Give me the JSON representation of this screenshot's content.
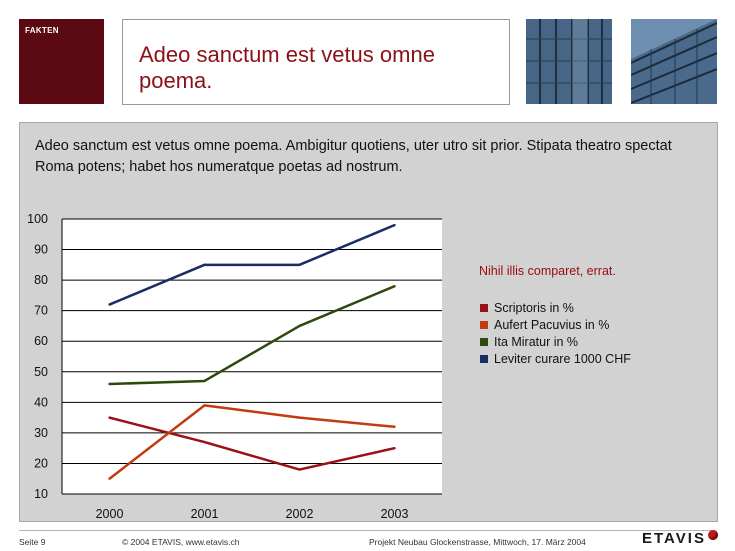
{
  "header": {
    "section_label": "FAKTEN",
    "title": "Adeo sanctum est vetus omne poema."
  },
  "content": {
    "intro": "Adeo sanctum est vetus omne poema. Ambigitur quotiens, uter utro sit prior. Stipata theatro spectat Roma potens; habet hos numeratque poetas ad nostrum."
  },
  "colors": {
    "brand_dark_red": "#5a0a10",
    "title_red": "#8c1018",
    "panel_gray": "#d2d2d2"
  },
  "chart_data": {
    "type": "line",
    "x": [
      "2000",
      "2001",
      "2002",
      "2003"
    ],
    "ylim": [
      10,
      100
    ],
    "yticks": [
      10,
      20,
      30,
      40,
      50,
      60,
      70,
      80,
      90,
      100
    ],
    "grid": true,
    "legend_title": "Nihil illis comparet, errat.",
    "legend_position": "right",
    "series": [
      {
        "name": "Scriptoris in %",
        "color": "#9a1018",
        "values": [
          35,
          27,
          18,
          25
        ]
      },
      {
        "name": "Aufert Pacuvius in %",
        "color": "#c23a10",
        "values": [
          15,
          39,
          35,
          32
        ]
      },
      {
        "name": "Ita Miratur in %",
        "color": "#2d4a0c",
        "values": [
          46,
          47,
          65,
          78
        ]
      },
      {
        "name": "Leviter curare 1000 CHF",
        "color": "#1a2e66",
        "values": [
          72,
          85,
          85,
          98
        ]
      }
    ]
  },
  "footer": {
    "page": "Seite 9",
    "copyright": "© 2004 ETAVIS, www.etavis.ch",
    "project": "Projekt Neubau Glockenstrasse, Mittwoch, 17. März 2004",
    "logo_text": "ETAVIS"
  }
}
